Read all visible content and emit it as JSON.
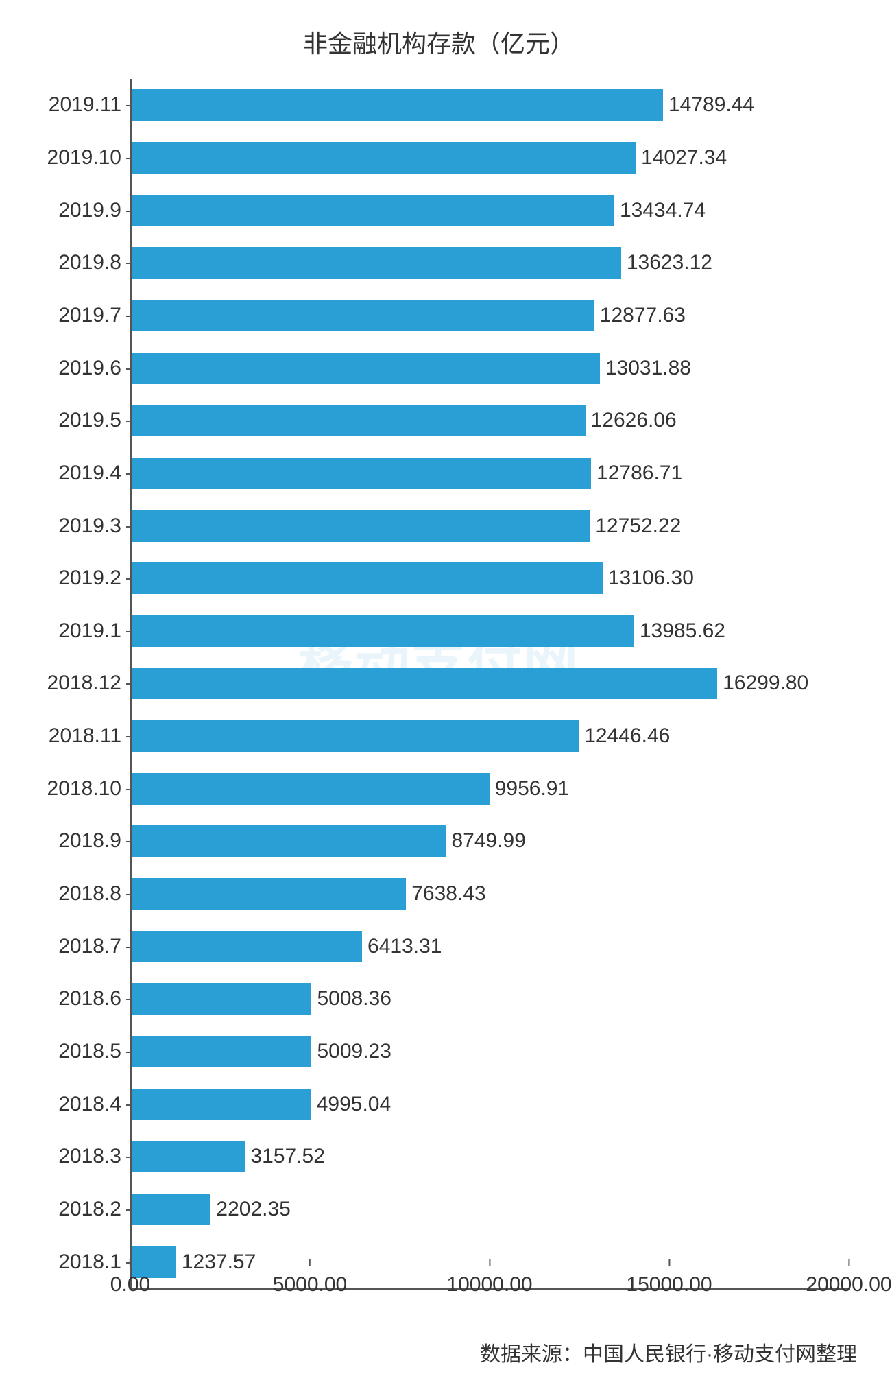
{
  "chart": {
    "type": "bar-horizontal",
    "title": "非金融机构存款（亿元）",
    "title_fontsize": 36,
    "title_color": "#333333",
    "background_color": "#ffffff",
    "bar_color": "#2a9fd6",
    "axis_color": "#555555",
    "text_color": "#333333",
    "value_fontsize": 30,
    "category_fontsize": 30,
    "tick_fontsize": 30,
    "xlim": [
      0,
      20000
    ],
    "xtick_step": 5000,
    "xticks": [
      "0.00",
      "5000.00",
      "10000.00",
      "15000.00",
      "20000.00"
    ],
    "bar_width_ratio": 0.6,
    "categories": [
      "2019.11",
      "2019.10",
      "2019.9",
      "2019.8",
      "2019.7",
      "2019.6",
      "2019.5",
      "2019.4",
      "2019.3",
      "2019.2",
      "2019.1",
      "2018.12",
      "2018.11",
      "2018.10",
      "2018.9",
      "2018.8",
      "2018.7",
      "2018.6",
      "2018.5",
      "2018.4",
      "2018.3",
      "2018.2",
      "2018.1"
    ],
    "values": [
      14789.44,
      14027.34,
      13434.74,
      13623.12,
      12877.63,
      13031.88,
      12626.06,
      12786.71,
      12752.22,
      13106.3,
      13985.62,
      16299.8,
      12446.46,
      9956.91,
      8749.99,
      7638.43,
      6413.31,
      5008.36,
      5009.23,
      4995.04,
      3157.52,
      2202.35,
      1237.57
    ],
    "value_labels": [
      "14789.44",
      "14027.34",
      "13434.74",
      "13623.12",
      "12877.63",
      "13031.88",
      "12626.06",
      "12786.71",
      "12752.22",
      "13106.30",
      "13985.62",
      "16299.80",
      "12446.46",
      "9956.91",
      "8749.99",
      "7638.43",
      "6413.31",
      "5008.36",
      "5009.23",
      "4995.04",
      "3157.52",
      "2202.35",
      "1237.57"
    ],
    "source_text": "数据来源：中国人民银行·移动支付网整理",
    "watermark_text": "移动支付网"
  }
}
